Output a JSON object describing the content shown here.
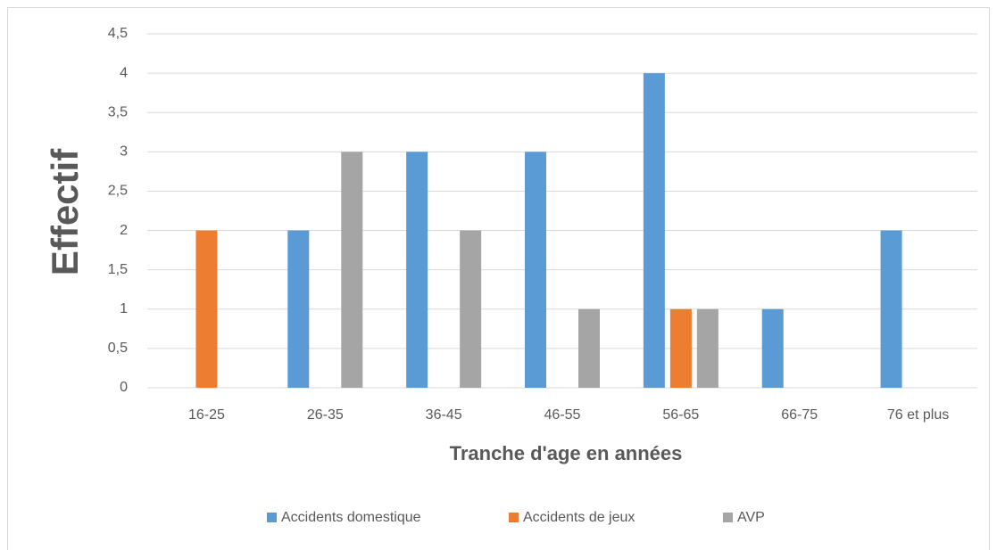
{
  "chart_data": {
    "type": "bar",
    "categories": [
      "16-25",
      "26-35",
      "36-45",
      "46-55",
      "56-65",
      "66-75",
      "76 et plus"
    ],
    "series": [
      {
        "name": "Accidents domestique",
        "color": "#5b9bd5",
        "values": [
          0,
          2,
          3,
          3,
          4,
          1,
          2
        ]
      },
      {
        "name": "Accidents de jeux",
        "color": "#ed7d31",
        "values": [
          2,
          0,
          0,
          0,
          1,
          0,
          0
        ]
      },
      {
        "name": "AVP",
        "color": "#a5a5a5",
        "values": [
          0,
          3,
          2,
          1,
          1,
          0,
          0
        ]
      }
    ],
    "xlabel": "Tranche d'age en années",
    "ylabel": "Effectif",
    "ylim": [
      0,
      4.5
    ],
    "yticks": [
      0,
      {
        "value": 0.5,
        "label": "0,5"
      },
      1,
      {
        "value": 1.5,
        "label": "1,5"
      },
      2,
      {
        "value": 2.5,
        "label": "2,5"
      },
      3,
      {
        "value": 3.5,
        "label": "3,5"
      },
      4,
      {
        "value": 4.5,
        "label": "4,5"
      }
    ],
    "grid": true,
    "legend": "bottom"
  }
}
